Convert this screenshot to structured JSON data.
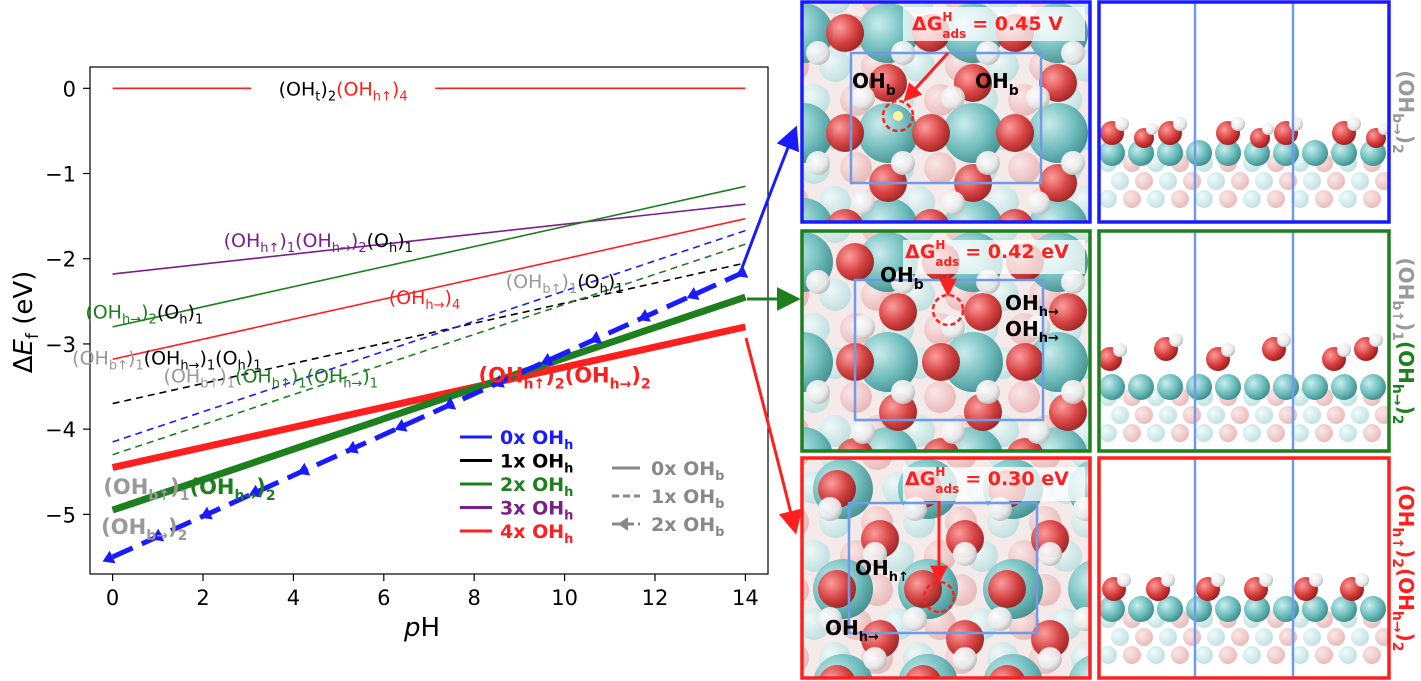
{
  "chart_data": {
    "type": "line",
    "xlabel": "pH",
    "ylabel": "ΔE_f (eV)",
    "xlim": [
      -0.5,
      14.5
    ],
    "ylim": [
      -5.7,
      0.25
    ],
    "xticks": [
      0,
      2,
      4,
      6,
      8,
      10,
      12,
      14
    ],
    "yticks": [
      0,
      -1,
      -2,
      -3,
      -4,
      -5
    ],
    "xtick_labels": [
      "0",
      "2",
      "4",
      "6",
      "8",
      "10",
      "12",
      "14"
    ],
    "ytick_labels": [
      "0",
      "−1",
      "−2",
      "−3",
      "−4",
      "−5"
    ],
    "grid": false,
    "legend_color": {
      "title": "",
      "entries": [
        {
          "label": "0x OH",
          "sub": "h",
          "color": "#1a1aff"
        },
        {
          "label": "1x OH",
          "sub": "h",
          "color": "#000000"
        },
        {
          "label": "2x OH",
          "sub": "h",
          "color": "#1e7f1e"
        },
        {
          "label": "3x OH",
          "sub": "h",
          "color": "#7a1f8a"
        },
        {
          "label": "4x OH",
          "sub": "h",
          "color": "#ff1f1f"
        }
      ]
    },
    "legend_style": {
      "entries": [
        {
          "label": "0x OH",
          "sub": "b",
          "style": "solid"
        },
        {
          "label": "1x OH",
          "sub": "b",
          "style": "dashed"
        },
        {
          "label": "2x OH",
          "sub": "b",
          "style": "dashed-arrow"
        }
      ]
    },
    "series": [
      {
        "id": "s_ohth4",
        "color": "#ff1f1f",
        "style": "solid",
        "width": 1.6,
        "x": [
          0,
          14
        ],
        "y": [
          0.0,
          0.0
        ]
      },
      {
        "id": "s_oh3",
        "color": "#7a1f8a",
        "style": "solid",
        "width": 1.6,
        "x": [
          0,
          14
        ],
        "y": [
          -2.18,
          -1.36
        ]
      },
      {
        "id": "s_ohh2oh1",
        "color": "#1e7f1e",
        "style": "solid",
        "width": 1.6,
        "x": [
          0,
          14
        ],
        "y": [
          -2.8,
          -1.15
        ]
      },
      {
        "id": "s_ohh4",
        "color": "#ff1f1f",
        "style": "solid",
        "width": 1.6,
        "x": [
          0,
          14
        ],
        "y": [
          -3.18,
          -1.53
        ]
      },
      {
        "id": "s_ohb1ohh1oh1",
        "color": "#000000",
        "style": "dashed",
        "width": 1.6,
        "x": [
          0,
          14
        ],
        "y": [
          -3.7,
          -2.05
        ]
      },
      {
        "id": "s_blue_dash",
        "color": "#1a1aff",
        "style": "dashed",
        "width": 1.6,
        "x": [
          0,
          14
        ],
        "y": [
          -4.15,
          -1.67
        ]
      },
      {
        "id": "s_green_dash",
        "color": "#1e7f1e",
        "style": "dashed",
        "width": 1.6,
        "x": [
          0,
          14
        ],
        "y": [
          -4.3,
          -1.83
        ]
      },
      {
        "id": "s_ohh2ohh2",
        "color": "#ff1f1f",
        "style": "solid",
        "width": 7,
        "x": [
          0,
          14
        ],
        "y": [
          -4.45,
          -2.8
        ]
      },
      {
        "id": "s_ohb1ohh2",
        "color": "#1e7f1e",
        "style": "solid",
        "width": 7,
        "x": [
          0,
          14
        ],
        "y": [
          -4.95,
          -2.45
        ]
      },
      {
        "id": "s_ohb2",
        "color": "#1a1aff",
        "style": "dashed-arrow",
        "width": 5,
        "x": [
          0,
          14
        ],
        "y": [
          -5.5,
          -2.15
        ]
      }
    ],
    "annotations": [
      {
        "id": "ann0",
        "x": 5.1,
        "y": 0.0,
        "color": "#000000",
        "parts": [
          [
            "(OH",
            "#000"
          ],
          [
            "t",
            "#000",
            "sub"
          ],
          [
            ")",
            "#000"
          ],
          [
            "2",
            "#000",
            "sub"
          ],
          [
            "(OH",
            "#ff1f1f"
          ],
          [
            "h↑",
            "#ff1f1f",
            "sub"
          ],
          [
            ")",
            "#ff1f1f"
          ],
          [
            "4",
            "#ff1f1f",
            "sub"
          ]
        ]
      },
      {
        "id": "ann1",
        "x": 4.55,
        "y": -1.78,
        "parts": [
          [
            "(OH",
            "#7a1f8a"
          ],
          [
            "h↑",
            "#7a1f8a",
            "sub"
          ],
          [
            ")",
            "#7a1f8a"
          ],
          [
            "1",
            "#7a1f8a",
            "sub"
          ],
          [
            "(OH",
            "#7a1f8a"
          ],
          [
            "h→",
            "#7a1f8a",
            "sub"
          ],
          [
            ")",
            "#7a1f8a"
          ],
          [
            "2",
            "#7a1f8a",
            "sub"
          ],
          [
            "(O",
            "#000"
          ],
          [
            "h",
            "#000",
            "sub"
          ],
          [
            ")",
            "#000"
          ],
          [
            "1",
            "#000",
            "sub"
          ]
        ]
      },
      {
        "id": "ann2",
        "x": 0.7,
        "y": -2.62,
        "parts": [
          [
            "(OH",
            "#1e7f1e"
          ],
          [
            "h→",
            "#1e7f1e",
            "sub"
          ],
          [
            ")",
            "#1e7f1e"
          ],
          [
            "2",
            "#1e7f1e",
            "sub"
          ],
          [
            "(O",
            "#000"
          ],
          [
            "h",
            "#000",
            "sub"
          ],
          [
            ")",
            "#000"
          ],
          [
            "1",
            "#000",
            "sub"
          ]
        ]
      },
      {
        "id": "ann3",
        "x": 6.9,
        "y": -2.45,
        "parts": [
          [
            "(OH",
            "#ff1f1f"
          ],
          [
            "h→",
            "#ff1f1f",
            "sub"
          ],
          [
            ")",
            "#ff1f1f"
          ],
          [
            "4",
            "#ff1f1f",
            "sub"
          ]
        ]
      },
      {
        "id": "ann4",
        "x": 10.0,
        "y": -2.26,
        "parts": [
          [
            "(OH",
            "#999999"
          ],
          [
            "b↑",
            "#999999",
            "sub"
          ],
          [
            ")",
            "#999999"
          ],
          [
            "1",
            "#999999",
            "sub"
          ],
          [
            "(O",
            "#000"
          ],
          [
            "h",
            "#000",
            "sub"
          ],
          [
            ")",
            "#000"
          ],
          [
            "1",
            "#000",
            "sub"
          ]
        ]
      },
      {
        "id": "ann5",
        "x": 1.2,
        "y": -3.16,
        "parts": [
          [
            "(OH",
            "#999999"
          ],
          [
            "b↑",
            "#999999",
            "sub"
          ],
          [
            ")",
            "#999999"
          ],
          [
            "1",
            "#999999",
            "sub"
          ],
          [
            "(OH",
            "#000"
          ],
          [
            "h→",
            "#000",
            "sub"
          ],
          [
            ")",
            "#000"
          ],
          [
            "1",
            "#000",
            "sub"
          ],
          [
            "(O",
            "#000"
          ],
          [
            "h",
            "#000",
            "sub"
          ],
          [
            ")",
            "#000"
          ],
          [
            "1",
            "#000",
            "sub"
          ]
        ]
      },
      {
        "id": "ann6",
        "x": 3.5,
        "y": -3.37,
        "parts": [
          [
            "(OH",
            "#999999"
          ],
          [
            "b↑",
            "#999999",
            "sub"
          ],
          [
            ")",
            "#999999"
          ],
          [
            "1",
            "#999999",
            "sub"
          ],
          [
            "(OH",
            "#1e7f1e"
          ],
          [
            "h↑",
            "#1e7f1e",
            "sub"
          ],
          [
            ")",
            "#1e7f1e"
          ],
          [
            "1",
            "#1e7f1e",
            "sub"
          ],
          [
            "(OH",
            "#1e7f1e"
          ],
          [
            "h→",
            "#1e7f1e",
            "sub"
          ],
          [
            ")",
            "#1e7f1e"
          ],
          [
            "1",
            "#1e7f1e",
            "sub"
          ]
        ]
      },
      {
        "id": "ann7",
        "x": 10.0,
        "y": -3.37,
        "bold": true,
        "parts": [
          [
            "(OH",
            "#ff1f1f"
          ],
          [
            "h↑",
            "#ff1f1f",
            "sub"
          ],
          [
            ")",
            "#ff1f1f"
          ],
          [
            "2",
            "#ff1f1f",
            "sub"
          ],
          [
            "(OH",
            "#ff1f1f"
          ],
          [
            "h→",
            "#ff1f1f",
            "sub"
          ],
          [
            ")",
            "#ff1f1f"
          ],
          [
            "2",
            "#ff1f1f",
            "sub"
          ]
        ]
      },
      {
        "id": "ann8",
        "x": 1.7,
        "y": -4.68,
        "bold": true,
        "parts": [
          [
            "(OH",
            "#999999"
          ],
          [
            "b↑",
            "#999999",
            "sub"
          ],
          [
            ")",
            "#999999"
          ],
          [
            "1",
            "#999999",
            "sub"
          ],
          [
            "(OH",
            "#1e7f1e"
          ],
          [
            "h→",
            "#1e7f1e",
            "sub"
          ],
          [
            ")",
            "#1e7f1e"
          ],
          [
            "2",
            "#1e7f1e",
            "sub"
          ]
        ]
      },
      {
        "id": "ann9",
        "x": 0.7,
        "y": -5.15,
        "bold": true,
        "parts": [
          [
            "(OH",
            "#999999"
          ],
          [
            "b→",
            "#999999",
            "sub"
          ],
          [
            ")",
            "#999999"
          ],
          [
            "2",
            "#999999",
            "sub"
          ]
        ]
      }
    ]
  },
  "panels": {
    "blue": {
      "energy_label": "ΔG",
      "energy_sup": "H",
      "energy_sub": "ads",
      "energy_value": "= 0.45 V",
      "color": "#1a1aff",
      "left_label": "OH",
      "left_sub": "b",
      "right_label": "OH",
      "right_sub": "b",
      "side_label_parts": [
        [
          "(OH",
          "#999999"
        ],
        [
          "b→",
          "#999999",
          "sub"
        ],
        [
          ")",
          "#999999"
        ],
        [
          "2",
          "#999999",
          "sub"
        ]
      ]
    },
    "green": {
      "energy_label": "ΔG",
      "energy_sup": "H",
      "energy_sub": "ads",
      "energy_value": "= 0.42 eV",
      "color": "#1e7f1e",
      "label_b": "OH",
      "label_b_sub": "b",
      "label_h1": "OH",
      "label_h1_sub": "h→",
      "label_h2": "OH",
      "label_h2_sub": "h→",
      "side_label_parts": [
        [
          "(OH",
          "#999999"
        ],
        [
          "b↑",
          "#999999",
          "sub"
        ],
        [
          ")",
          "#999999"
        ],
        [
          "1",
          "#999999",
          "sub"
        ],
        [
          "(OH",
          "#1e7f1e"
        ],
        [
          "h→",
          "#1e7f1e",
          "sub"
        ],
        [
          ")",
          "#1e7f1e"
        ],
        [
          "2",
          "#1e7f1e",
          "sub"
        ]
      ]
    },
    "red": {
      "energy_label": "ΔG",
      "energy_sup": "H",
      "energy_sub": "ads",
      "energy_value": "= 0.30 eV",
      "color": "#ff1f1f",
      "label_up": "OH",
      "label_up_sub": "h↑",
      "label_right": "OH",
      "label_right_sub": "h→",
      "side_label_parts": [
        [
          "(OH",
          "#ff1f1f"
        ],
        [
          "h↑",
          "#ff1f1f",
          "sub"
        ],
        [
          ")",
          "#ff1f1f"
        ],
        [
          "2",
          "#ff1f1f",
          "sub"
        ],
        [
          "(OH",
          "#ff1f1f"
        ],
        [
          "h→",
          "#ff1f1f",
          "sub"
        ],
        [
          ")",
          "#ff1f1f"
        ],
        [
          "2",
          "#ff1f1f",
          "sub"
        ]
      ]
    }
  }
}
